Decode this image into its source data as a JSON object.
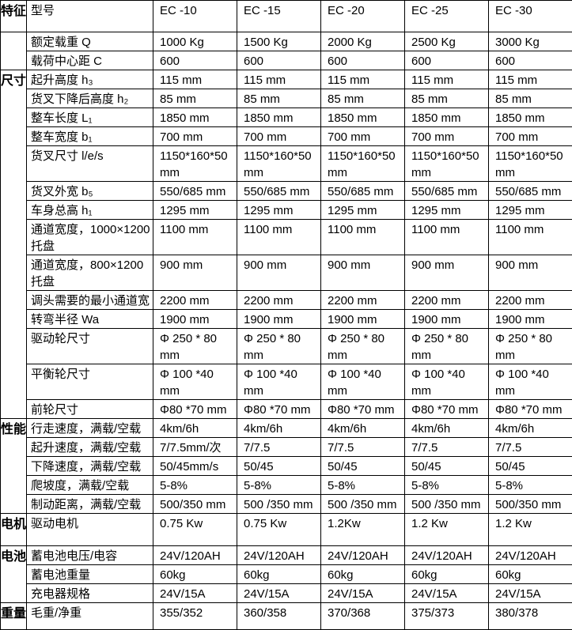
{
  "page": {
    "background_color": "#ffffff",
    "text_color": "#000000",
    "border_color": "#000000"
  },
  "table": {
    "sections": [
      {
        "category": "特征",
        "rows": [
          {
            "label": "型号",
            "values": [
              "EC -10",
              "EC -15",
              "EC -20",
              "EC -25",
              "EC -30"
            ]
          }
        ]
      },
      {
        "category": "",
        "rows": [
          {
            "label": "额定载重 Q",
            "values": [
              "1000 Kg",
              "1500 Kg",
              "2000 Kg",
              "2500 Kg",
              "3000 Kg"
            ]
          },
          {
            "label": "载荷中心距 C",
            "values": [
              "600",
              "600",
              "600",
              "600",
              "600"
            ]
          }
        ]
      },
      {
        "category": "尺寸",
        "rows": [
          {
            "label": "起升高度 h₃",
            "values": [
              "115 mm",
              "115 mm",
              "115 mm",
              "115 mm",
              "115 mm"
            ]
          },
          {
            "label": "货叉下降后高度 h₂",
            "values": [
              "85 mm",
              "85 mm",
              "85 mm",
              "85 mm",
              "85 mm"
            ]
          },
          {
            "label": "整车长度 L₁",
            "values": [
              "1850 mm",
              "1850 mm",
              "1850 mm",
              "1850 mm",
              "1850 mm"
            ]
          },
          {
            "label": "整车宽度 b₁",
            "values": [
              "700 mm",
              "700 mm",
              "700 mm",
              "700 mm",
              "700 mm"
            ]
          },
          {
            "label": "货叉尺寸 l/e/s",
            "values": [
              "1150*160*50 mm",
              "1150*160*50 mm",
              "1150*160*50 mm",
              "1150*160*50 mm",
              "1150*160*50 mm"
            ]
          },
          {
            "label": "货叉外宽 b₅",
            "values": [
              "550/685 mm",
              "550/685 mm",
              "550/685 mm",
              "550/685 mm",
              "550/685 mm"
            ]
          },
          {
            "label": "车身总高 h₁",
            "values": [
              "1295 mm",
              "1295 mm",
              "1295 mm",
              "1295 mm",
              "1295 mm"
            ]
          },
          {
            "label": "通道宽度，1000×1200托盘",
            "values": [
              "1100 mm",
              "1100 mm",
              "1100 mm",
              "1100 mm",
              "1100 mm"
            ]
          },
          {
            "label": "通道宽度，800×1200托盘",
            "values": [
              "900 mm",
              "900 mm",
              "900 mm",
              "900 mm",
              "900 mm"
            ]
          },
          {
            "label": "调头需要的最小通道宽",
            "values": [
              "2200 mm",
              "2200 mm",
              "2200 mm",
              "2200 mm",
              "2200 mm"
            ]
          },
          {
            "label": "转弯半径 Wa",
            "values": [
              "1900 mm",
              "1900 mm",
              "1900 mm",
              "1900 mm",
              "1900 mm"
            ]
          },
          {
            "label": "驱动轮尺寸",
            "values": [
              "Φ 250 * 80 mm",
              "Φ 250 * 80 mm",
              "Φ 250 * 80 mm",
              "Φ 250 * 80 mm",
              "Φ 250 * 80 mm"
            ]
          },
          {
            "label": "平衡轮尺寸",
            "values": [
              "Φ 100 *40 mm",
              "Φ 100 *40 mm",
              "Φ 100 *40 mm",
              "Φ 100 *40 mm",
              "Φ 100 *40 mm"
            ]
          },
          {
            "label": "前轮尺寸",
            "values": [
              "Φ80 *70 mm",
              "Φ80 *70 mm",
              "Φ80 *70 mm",
              "Φ80 *70 mm",
              "Φ80 *70 mm"
            ]
          }
        ]
      },
      {
        "category": "性能",
        "rows": [
          {
            "label": "行走速度，满载/空载",
            "values": [
              "4km/6h",
              "4km/6h",
              "4km/6h",
              "4km/6h",
              "4km/6h"
            ]
          },
          {
            "label": "起升速度，满载/空载",
            "values": [
              "7/7.5mm/次",
              "7/7.5",
              "7/7.5",
              "7/7.5",
              "7/7.5"
            ]
          },
          {
            "label": "下降速度，满载/空载",
            "values": [
              "50/45mm/s",
              "50/45",
              "50/45",
              "50/45",
              "50/45"
            ]
          },
          {
            "label": "爬坡度，满载/空载",
            "values": [
              "5-8%",
              "5-8%",
              "5-8%",
              "5-8%",
              "5-8%"
            ]
          },
          {
            "label": "制动距离，满载/空载",
            "values": [
              "500/350 mm",
              "500 /350 mm",
              "500 /350 mm",
              "500 /350 mm",
              "500/350 mm"
            ]
          }
        ]
      },
      {
        "category": "电机",
        "rows": [
          {
            "label": "驱动电机",
            "values": [
              "0.75 Kw",
              "0.75 Kw",
              "1.2Kw",
              "1.2 Kw",
              "1.2 Kw"
            ]
          }
        ]
      },
      {
        "category": "电池",
        "rows": [
          {
            "label": "蓄电池电压/电容",
            "values": [
              "24V/120AH",
              "24V/120AH",
              "24V/120AH",
              "24V/120AH",
              "24V/120AH"
            ]
          },
          {
            "label": "蓄电池重量",
            "values": [
              "60kg",
              "60kg",
              "60kg",
              "60kg",
              "60kg"
            ]
          },
          {
            "label": "充电器规格",
            "values": [
              "24V/15A",
              "24V/15A",
              "24V/15A",
              "24V/15A",
              "24V/15A"
            ]
          }
        ]
      },
      {
        "category": "重量",
        "rows": [
          {
            "label": "毛重/净重",
            "values": [
              "355/352",
              "360/358",
              "370/368",
              "375/373",
              "380/378"
            ]
          }
        ]
      }
    ]
  }
}
